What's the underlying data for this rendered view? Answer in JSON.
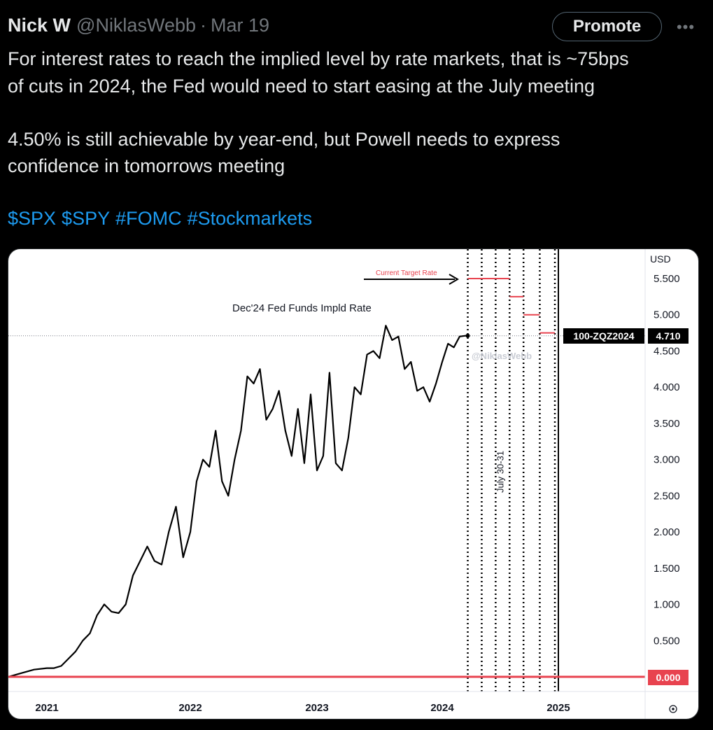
{
  "tweet": {
    "author_name": "Nick W",
    "author_handle": "@NiklasWebb",
    "separator": "·",
    "date": "Mar 19",
    "promote_label": "Promote",
    "more_label": "•••",
    "text_paragraph_1_line_1": "For interest rates to reach the implied level by rate markets, that is ~75bps",
    "text_paragraph_1_line_2": "of cuts in 2024, the Fed would need to start easing at the July meeting",
    "text_paragraph_2_line_1": "4.50% is still achievable by year-end, but Powell needs to express",
    "text_paragraph_2_line_2": "confidence in tomorrows meeting",
    "hashtags": [
      "$SPX",
      "$SPY",
      "#FOMC",
      "#Stockmarkets"
    ],
    "link_color": "#1d9bf0"
  },
  "chart_data": {
    "type": "line",
    "title": "Dec'24 Fed Funds Impld Rate",
    "currency_label": "USD",
    "watermark": "@NiklasWebb",
    "symbol_label": "100-ZQZ2024",
    "last_value_label": "4.710",
    "zero_label": "0.000",
    "current_target_rate_label": "Current Target Rate",
    "meeting_label": "July 30-31",
    "settings_icon": "gear-icon",
    "line_color": "#000000",
    "zero_line_color": "#e8434f",
    "target_color": "#e8434f",
    "ylim": [
      -0.25,
      5.7
    ],
    "yticks": [
      "0.500",
      "1.000",
      "1.500",
      "2.000",
      "2.500",
      "3.000",
      "3.500",
      "4.000",
      "4.500",
      "5.000",
      "5.500"
    ],
    "ytick_values": [
      0.5,
      1.0,
      1.5,
      2.0,
      2.5,
      3.0,
      3.5,
      4.0,
      4.5,
      5.0,
      5.5
    ],
    "xticks": [
      "2021",
      "2022",
      "2023",
      "2024",
      "2025"
    ],
    "xtick_values": [
      2021.0,
      2022.0,
      2023.0,
      2024.0,
      2025.0
    ],
    "x_range": [
      2020.7,
      2025.7
    ],
    "last_value": 4.71,
    "meeting_lines": [
      2024.22,
      2024.34,
      2024.46,
      2024.58,
      2024.7,
      2024.84,
      2024.97
    ],
    "july_meeting_x": 2024.58,
    "year_end_x": 2025.0,
    "step_levels": [
      {
        "x_start": 2024.22,
        "x_end": 2024.58,
        "value": 5.5
      },
      {
        "x_start": 2024.58,
        "x_end": 2024.7,
        "value": 5.25
      },
      {
        "x_start": 2024.7,
        "x_end": 2024.84,
        "value": 5.0
      },
      {
        "x_start": 2024.84,
        "x_end": 2024.97,
        "value": 4.75
      }
    ],
    "series": [
      {
        "x": [
          2020.7,
          2020.8,
          2020.9,
          2021.0,
          2021.05,
          2021.1,
          2021.15,
          2021.2,
          2021.25,
          2021.3,
          2021.35,
          2021.4,
          2021.45,
          2021.5,
          2021.55,
          2021.6,
          2021.65,
          2021.7,
          2021.75,
          2021.8,
          2021.85,
          2021.9,
          2021.95,
          2022.0,
          2022.05,
          2022.1,
          2022.15,
          2022.2,
          2022.25,
          2022.3,
          2022.35,
          2022.4,
          2022.45,
          2022.5,
          2022.55,
          2022.6,
          2022.65,
          2022.7,
          2022.75,
          2022.8,
          2022.85,
          2022.9,
          2022.95,
          2023.0,
          2023.05,
          2023.1,
          2023.15,
          2023.2,
          2023.25,
          2023.3,
          2023.35,
          2023.4,
          2023.45,
          2023.5,
          2023.55,
          2023.6,
          2023.65,
          2023.7,
          2023.75,
          2023.8,
          2023.85,
          2023.9,
          2023.95,
          2024.0,
          2024.05,
          2024.1,
          2024.15,
          2024.2,
          2024.22
        ],
        "y": [
          0.0,
          0.05,
          0.1,
          0.12,
          0.12,
          0.15,
          0.25,
          0.35,
          0.5,
          0.6,
          0.85,
          1.0,
          0.9,
          0.88,
          1.0,
          1.4,
          1.6,
          1.8,
          1.6,
          1.55,
          2.0,
          2.35,
          1.65,
          2.0,
          2.7,
          3.0,
          2.9,
          3.4,
          2.7,
          2.5,
          3.0,
          3.4,
          4.15,
          4.05,
          4.25,
          3.55,
          3.7,
          3.95,
          3.4,
          3.05,
          3.7,
          2.95,
          3.9,
          2.85,
          3.05,
          4.2,
          2.95,
          2.85,
          3.3,
          4.0,
          3.9,
          4.45,
          4.5,
          4.4,
          4.85,
          4.65,
          4.7,
          4.25,
          4.35,
          3.95,
          4.0,
          3.8,
          4.05,
          4.35,
          4.6,
          4.55,
          4.7,
          4.71,
          4.71
        ]
      }
    ]
  }
}
